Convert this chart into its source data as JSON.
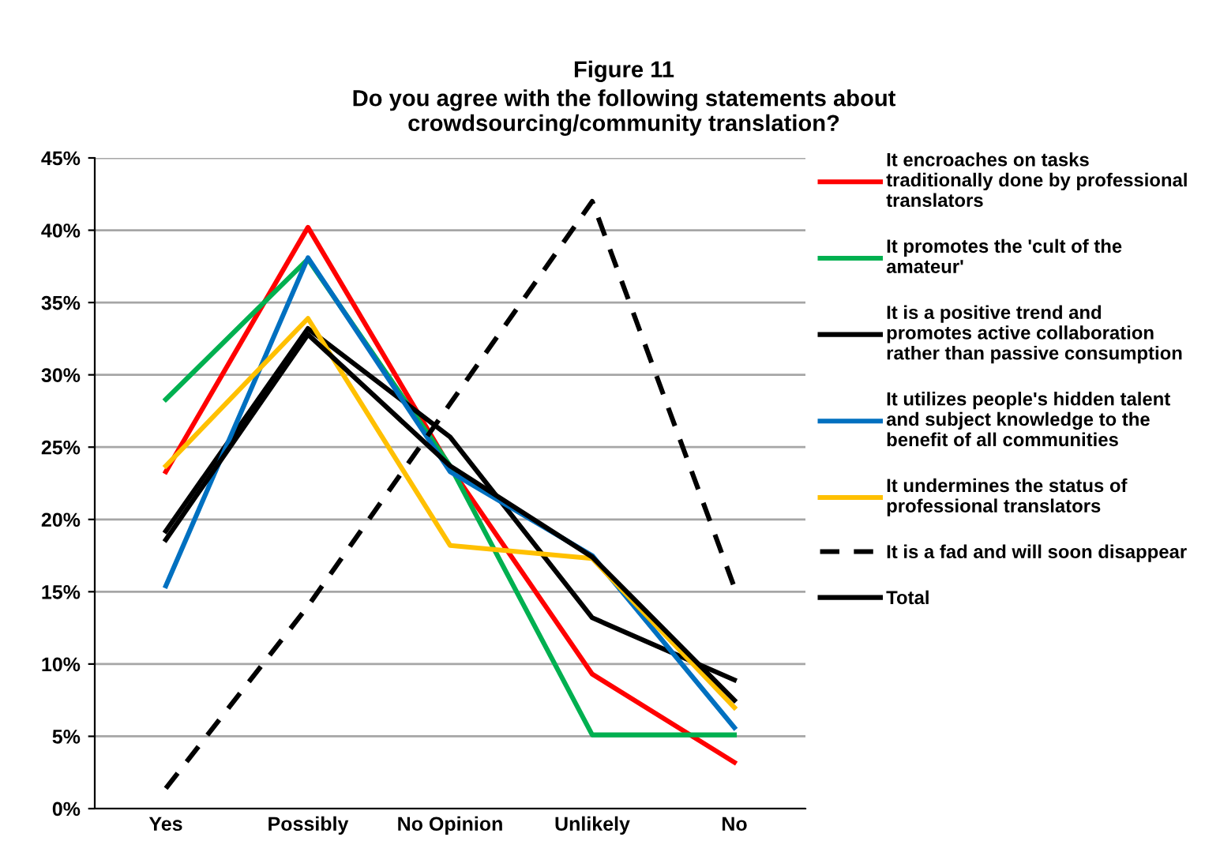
{
  "chart_data": {
    "type": "line",
    "title": "Figure 11",
    "subtitle": "Do you agree with the following statements about\ncrowdsourcing/community translation?",
    "categories": [
      "Yes",
      "Possibly",
      "No Opinion",
      "Unlikely",
      "No"
    ],
    "series": [
      {
        "name": "It encroaches on tasks\ntraditionally done by professional\ntranslators",
        "color": "#ff0000",
        "values": [
          0.233,
          0.402,
          0.236,
          0.093,
          0.032
        ]
      },
      {
        "name": "It promotes the 'cult of the\namateur'",
        "color": "#00b050",
        "values": [
          0.283,
          0.38,
          0.237,
          0.051,
          0.051
        ]
      },
      {
        "name": "It is a positive trend and\npromotes active collaboration\nrather than passive consumption",
        "color": "#000000",
        "values": [
          0.192,
          0.332,
          0.257,
          0.132,
          0.089
        ]
      },
      {
        "name": "It utilizes people's hidden talent\nand subject knowledge to the\nbenefit of all communities",
        "color": "#0070c0",
        "values": [
          0.154,
          0.381,
          0.233,
          0.175,
          0.056
        ]
      },
      {
        "name": "It undermines the status of\nprofessional translators",
        "color": "#ffc000",
        "values": [
          0.237,
          0.339,
          0.182,
          0.173,
          0.07
        ]
      },
      {
        "name": "It is a fad and will soon disappear",
        "color": "#000000",
        "line_style": "dashed",
        "values": [
          0.014,
          0.14,
          0.28,
          0.42,
          0.153
        ]
      },
      {
        "name": "Total",
        "color": "#000000",
        "values": [
          0.186,
          0.328,
          0.237,
          0.174,
          0.075
        ]
      }
    ],
    "ylim": [
      0,
      0.45
    ],
    "yticks": [
      {
        "value": 0,
        "label": "0%"
      },
      {
        "value": 0.05,
        "label": "5%"
      },
      {
        "value": 0.1,
        "label": "10%"
      },
      {
        "value": 0.15,
        "label": "15%"
      },
      {
        "value": 0.2,
        "label": "20%"
      },
      {
        "value": 0.25,
        "label": "25%"
      },
      {
        "value": 0.3,
        "label": "30%"
      },
      {
        "value": 0.35,
        "label": "35%"
      },
      {
        "value": 0.4,
        "label": "40%"
      },
      {
        "value": 0.45,
        "label": "45%"
      }
    ],
    "grid": "y",
    "legend": "right",
    "marker": "none",
    "line_style": "solid"
  }
}
